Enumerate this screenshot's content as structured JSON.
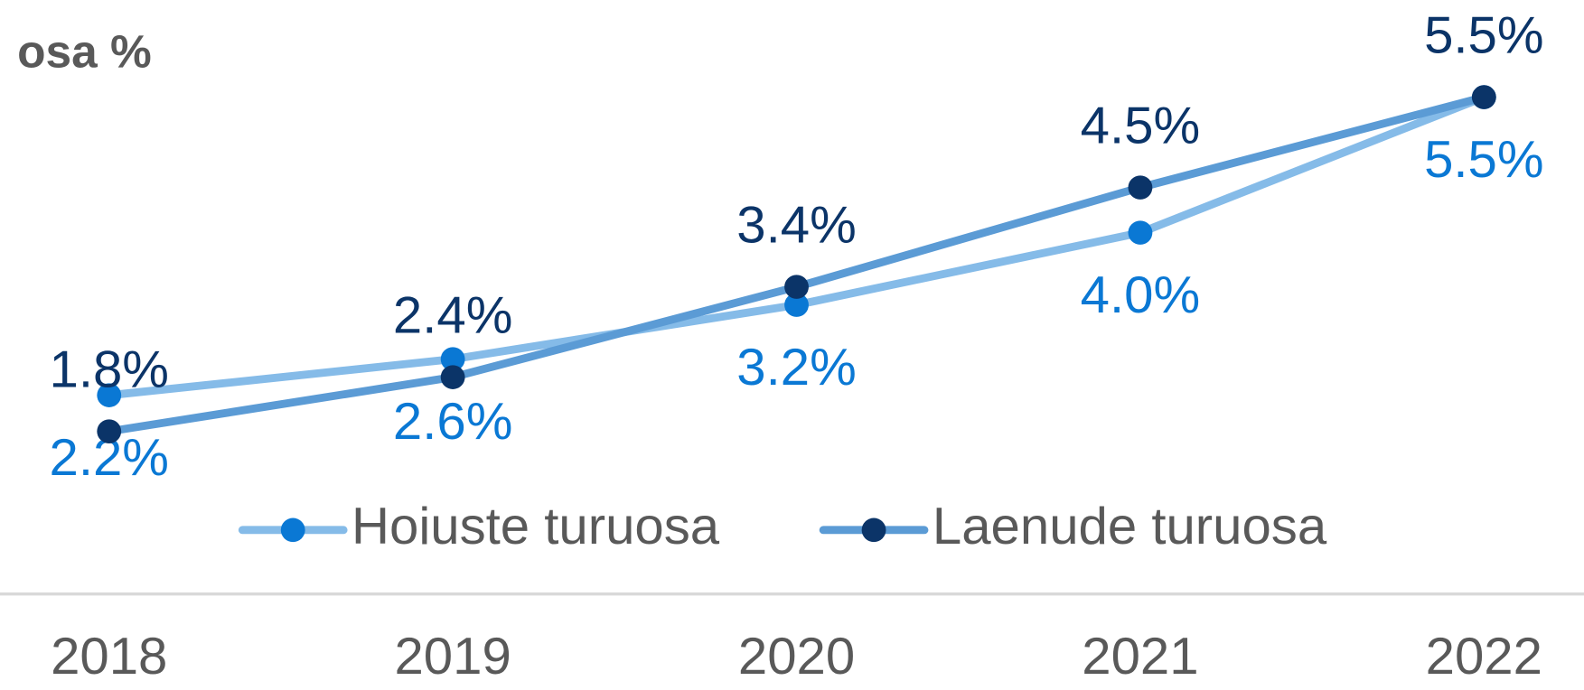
{
  "chart_data": {
    "type": "line",
    "title": "osa %",
    "categories": [
      "2018",
      "2019",
      "2020",
      "2021",
      "2022"
    ],
    "series": [
      {
        "name": "Hoiuste turuosa",
        "color": "#85bbe8",
        "marker_color": "#0a78d4",
        "values": [
          2.2,
          2.6,
          3.2,
          4.0,
          5.5
        ],
        "value_labels": [
          "2.2%",
          "2.6%",
          "3.2%",
          "4.0%",
          "5.5%"
        ],
        "label_position": "below"
      },
      {
        "name": "Laenude turuosa",
        "color": "#5b9bd5",
        "marker_color": "#0b3468",
        "values": [
          1.8,
          2.4,
          3.4,
          4.5,
          5.5
        ],
        "value_labels": [
          "1.8%",
          "2.4%",
          "3.4%",
          "4.5%",
          "5.5%"
        ],
        "label_position": "above"
      }
    ],
    "ylim": [
      0,
      6
    ],
    "grid": false,
    "legend": "bottom"
  }
}
